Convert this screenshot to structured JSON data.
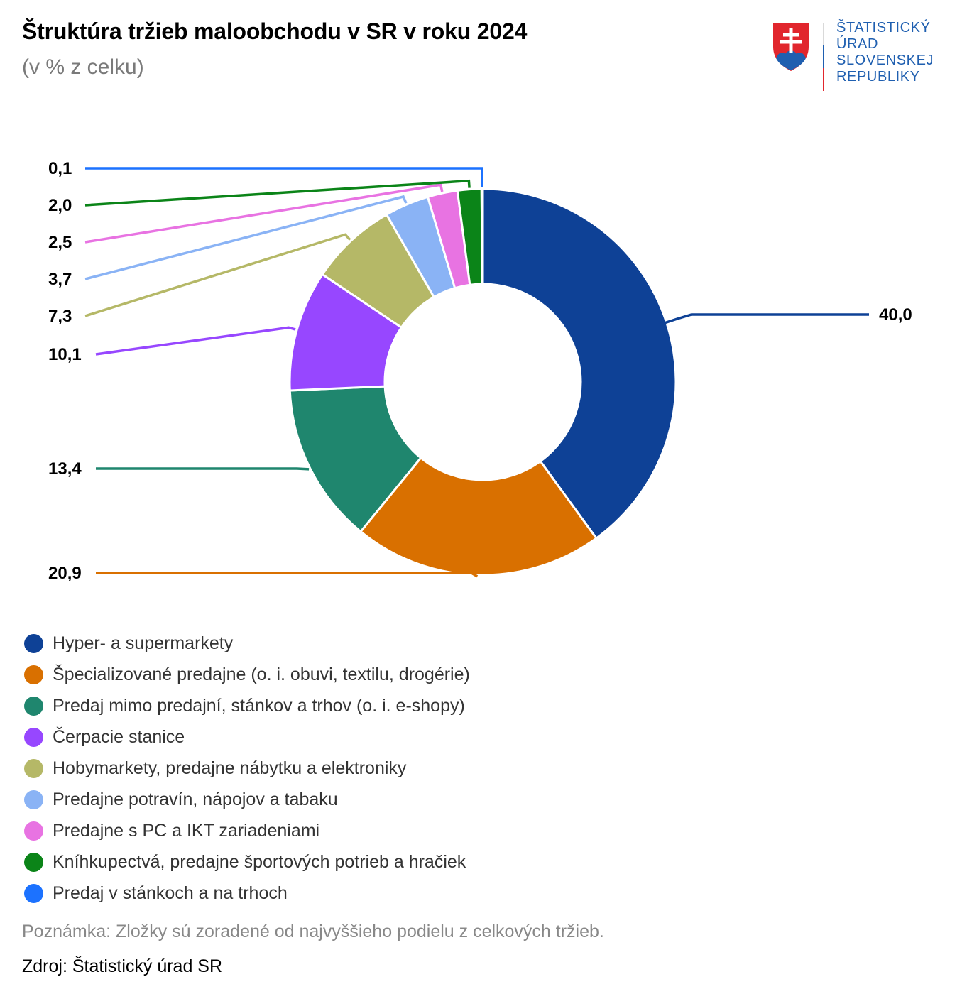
{
  "header": {
    "title": "Štruktúra tržieb maloobchodu v SR v roku 2024",
    "subtitle": "(v % z celku)"
  },
  "logo": {
    "lines": [
      "ŠTATISTICKÝ",
      "ÚRAD",
      "SLOVENSKEJ",
      "REPUBLIKY"
    ],
    "icon": "slovak-coat-of-arms"
  },
  "chart_data": {
    "type": "pie",
    "variant": "donut",
    "title": "Štruktúra tržieb maloobchodu v SR v roku 2024",
    "subtitle": "(v % z celku)",
    "categories": [
      "Hyper- a supermarkety",
      "Špecializované predajne (o. i. obuvi, textilu, drogérie)",
      "Predaj mimo predajní, stánkov a trhov (o. i. e-shopy)",
      "Čerpacie stanice",
      "Hobymarkety, predajne nábytku a elektroniky",
      "Predajne potravín, nápojov a tabaku",
      "Predajne s PC a IKT zariadeniami",
      "Kníhkupectvá, predajne športových potrieb a hračiek",
      "Predaj v stánkoch a na trhoch"
    ],
    "values": [
      40.0,
      20.9,
      13.4,
      10.1,
      7.3,
      3.7,
      2.5,
      2.0,
      0.1
    ],
    "value_labels": [
      "40,0",
      "20,9",
      "13,4",
      "10,1",
      "7,3",
      "3,7",
      "2,5",
      "2,0",
      "0,1"
    ],
    "colors": [
      "#0e4196",
      "#d97000",
      "#1f866e",
      "#9747ff",
      "#b5b867",
      "#8ab3f5",
      "#e873e2",
      "#0b8418",
      "#1c72ff"
    ],
    "legend_position": "bottom"
  },
  "footer": {
    "note": "Poznámka: Zložky sú zoradené od najvyššieho podielu z celkových tržieb.",
    "source": "Zdroj: Štatistický úrad SR"
  }
}
